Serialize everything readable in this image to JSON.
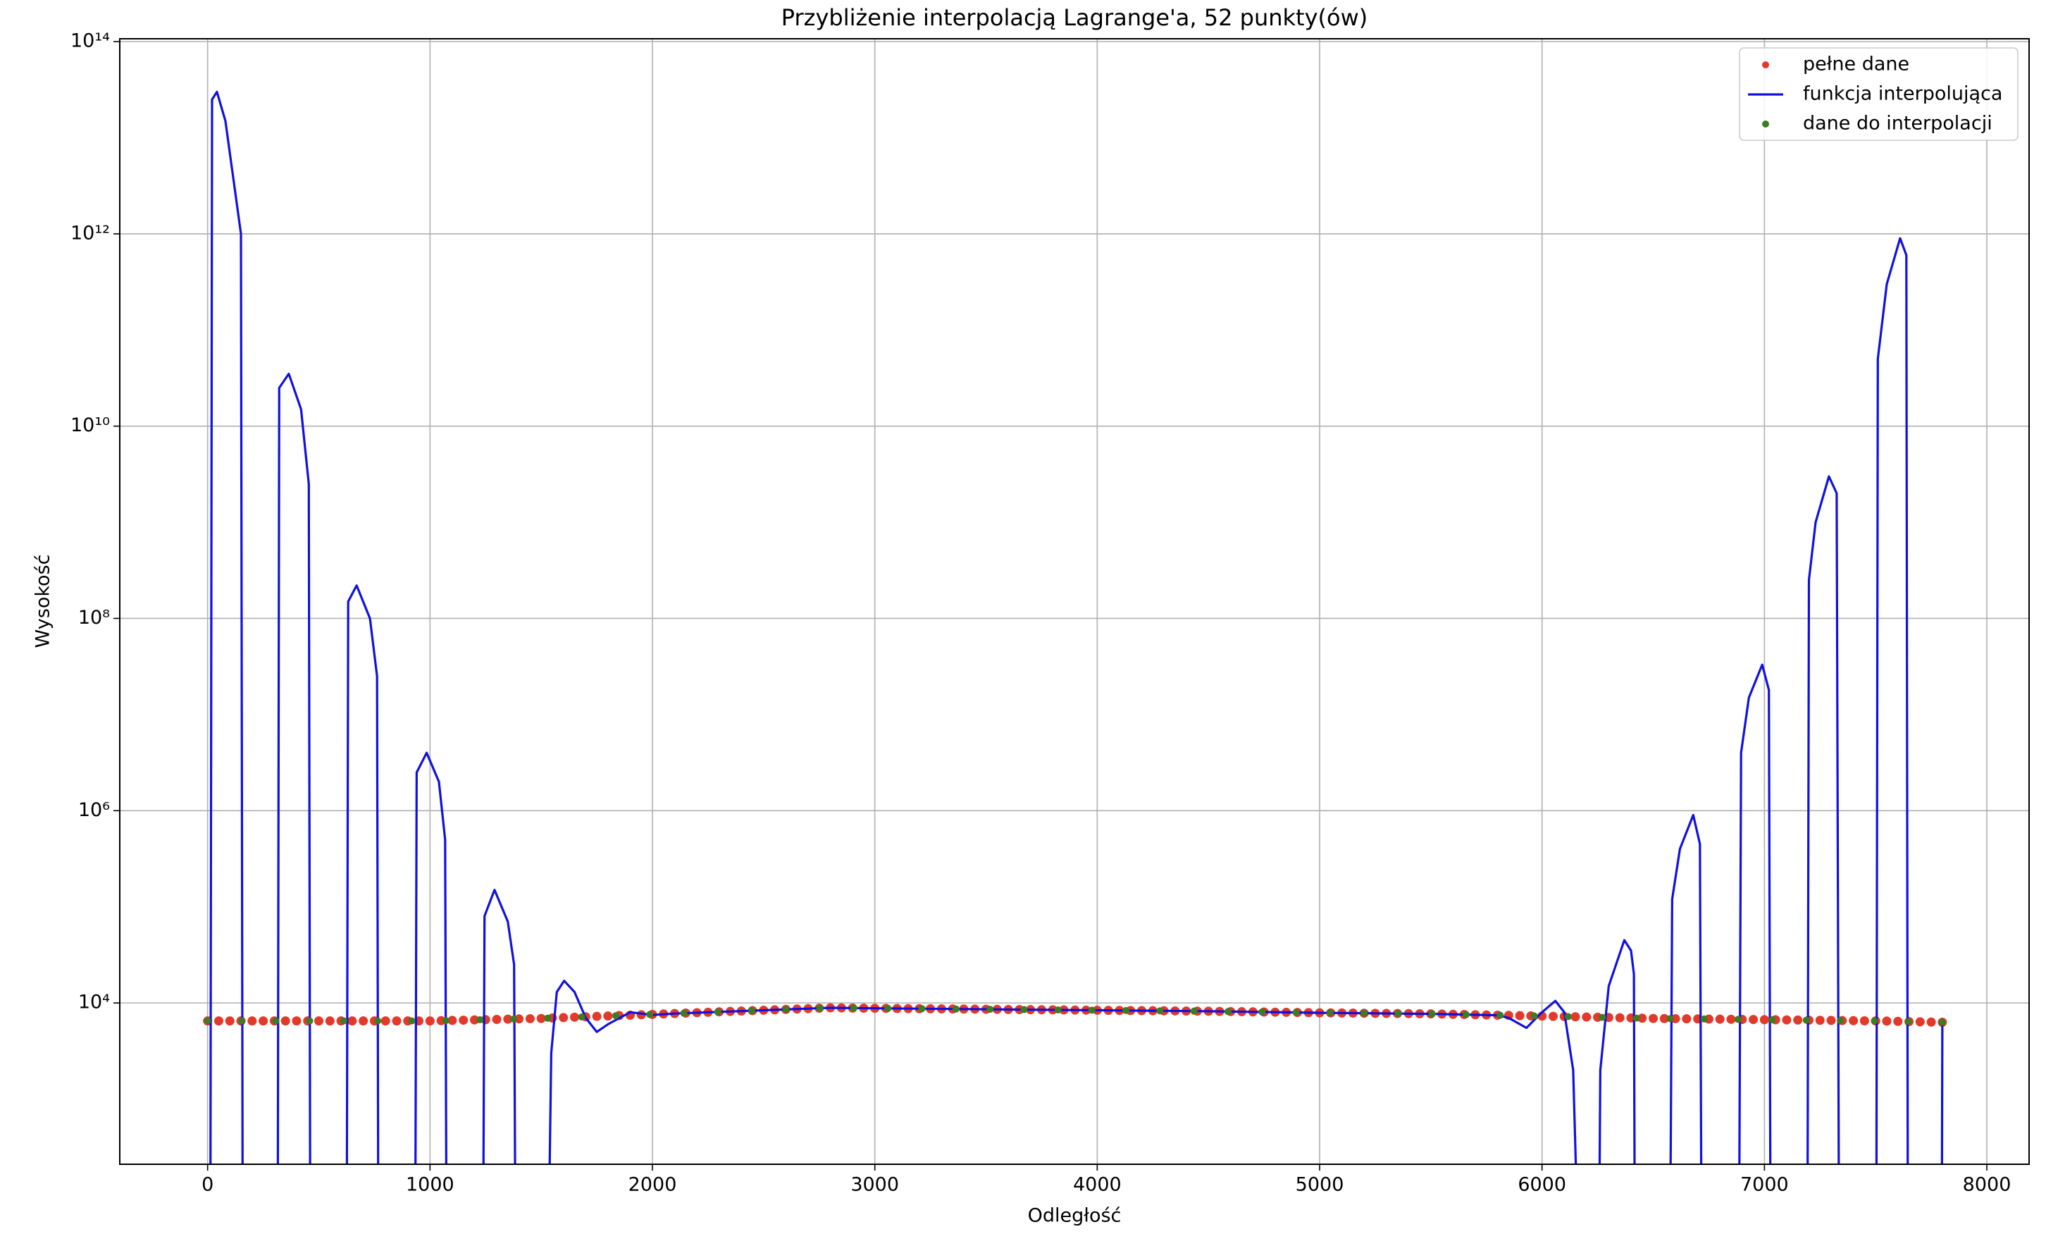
{
  "chart_data": {
    "type": "line",
    "title": "Przybliżenie interpolacją Lagrange'a, 52 punkty(ów)",
    "x_label": "Odległość",
    "y_label": "Wysokość",
    "xlim": [
      -395,
      8190
    ],
    "xticks": [
      0,
      1000,
      2000,
      3000,
      4000,
      5000,
      6000,
      7000,
      8000
    ],
    "ylim": [
      210,
      107000000000000.0
    ],
    "log_y": true,
    "yticks": [
      {
        "value": 10000,
        "label": "10⁴"
      },
      {
        "value": 1000000,
        "label": "10⁶"
      },
      {
        "value": 100000000,
        "label": "10⁸"
      },
      {
        "value": 10000000000,
        "label": "10¹⁰"
      },
      {
        "value": 1000000000000,
        "label": "10¹²"
      },
      {
        "value": 100000000000000,
        "label": "10¹⁴"
      }
    ],
    "grid": true,
    "legend": "upper right",
    "series": [
      {
        "name": "pełne dane",
        "kind": "scatter",
        "color": "#e2392a",
        "x": [
          0,
          50,
          100,
          150,
          200,
          250,
          300,
          350,
          400,
          450,
          500,
          550,
          600,
          650,
          700,
          750,
          800,
          850,
          900,
          950,
          1000,
          1050,
          1100,
          1150,
          1200,
          1250,
          1300,
          1350,
          1400,
          1450,
          1500,
          1550,
          1600,
          1650,
          1700,
          1750,
          1800,
          1850,
          1900,
          1950,
          2000,
          2050,
          2100,
          2150,
          2200,
          2250,
          2300,
          2350,
          2400,
          2450,
          2500,
          2550,
          2600,
          2650,
          2700,
          2750,
          2800,
          2850,
          2900,
          2950,
          3000,
          3050,
          3100,
          3150,
          3200,
          3250,
          3300,
          3350,
          3400,
          3450,
          3500,
          3550,
          3600,
          3650,
          3700,
          3750,
          3800,
          3850,
          3900,
          3950,
          4000,
          4050,
          4100,
          4150,
          4200,
          4250,
          4300,
          4350,
          4400,
          4450,
          4500,
          4550,
          4600,
          4650,
          4700,
          4750,
          4800,
          4850,
          4900,
          4950,
          5000,
          5050,
          5100,
          5150,
          5200,
          5250,
          5300,
          5350,
          5400,
          5450,
          5500,
          5550,
          5600,
          5650,
          5700,
          5750,
          5800,
          5850,
          5900,
          5950,
          6000,
          6050,
          6100,
          6150,
          6200,
          6250,
          6300,
          6350,
          6400,
          6450,
          6500,
          6550,
          6600,
          6650,
          6700,
          6750,
          6800,
          6850,
          6900,
          6950,
          7000,
          7050,
          7100,
          7150,
          7200,
          7250,
          7300,
          7350,
          7400,
          7450,
          7500,
          7550,
          7600,
          7650,
          7700,
          7750,
          7800
        ],
        "values": [
          6500,
          6500,
          6500,
          6500,
          6500,
          6500,
          6500,
          6500,
          6500,
          6500,
          6500,
          6500,
          6500,
          6500,
          6500,
          6500,
          6500,
          6500,
          6500,
          6500,
          6500,
          6540,
          6580,
          6620,
          6660,
          6700,
          6740,
          6780,
          6820,
          6860,
          6900,
          6970,
          7040,
          7110,
          7180,
          7250,
          7320,
          7390,
          7460,
          7530,
          7600,
          7680,
          7760,
          7840,
          7920,
          8000,
          8080,
          8160,
          8240,
          8320,
          8400,
          8480,
          8570,
          8650,
          8730,
          8820,
          8900,
          8880,
          8850,
          8830,
          8800,
          8780,
          8760,
          8740,
          8720,
          8700,
          8680,
          8660,
          8640,
          8620,
          8600,
          8580,
          8560,
          8540,
          8520,
          8500,
          8480,
          8460,
          8440,
          8420,
          8400,
          8380,
          8360,
          8340,
          8320,
          8300,
          8280,
          8260,
          8240,
          8220,
          8200,
          8170,
          8140,
          8110,
          8080,
          8050,
          8020,
          7990,
          7960,
          7930,
          7900,
          7880,
          7860,
          7840,
          7820,
          7800,
          7780,
          7760,
          7740,
          7720,
          7700,
          7660,
          7620,
          7580,
          7540,
          7500,
          7460,
          7420,
          7380,
          7340,
          7300,
          7260,
          7220,
          7180,
          7140,
          7100,
          7060,
          7020,
          6980,
          6940,
          6900,
          6880,
          6860,
          6840,
          6820,
          6800,
          6780,
          6760,
          6740,
          6720,
          6700,
          6680,
          6660,
          6640,
          6620,
          6600,
          6580,
          6560,
          6540,
          6520,
          6500,
          6470,
          6430,
          6400,
          6370,
          6330,
          6300
        ]
      },
      {
        "name": "funkcja interpolująca",
        "kind": "line",
        "color": "#1010e0",
        "x": [
          12,
          20,
          42,
          80,
          150,
          158,
          240,
          315,
          322,
          365,
          420,
          455,
          462,
          545,
          625,
          632,
          670,
          730,
          762,
          768,
          850,
          933,
          940,
          985,
          1040,
          1068,
          1075,
          1160,
          1238,
          1245,
          1290,
          1350,
          1378,
          1385,
          1460,
          1530,
          1545,
          1570,
          1603,
          1650,
          1700,
          1750,
          1800,
          1900,
          2000,
          2100,
          2300,
          2500,
          2800,
          3000,
          3500,
          4000,
          4500,
          5000,
          5500,
          5800,
          5850,
          5930,
          6000,
          6060,
          6100,
          6140,
          6168,
          6210,
          6255,
          6262,
          6300,
          6370,
          6400,
          6413,
          6418,
          6500,
          6575,
          6585,
          6620,
          6680,
          6710,
          6718,
          6800,
          6885,
          6895,
          6930,
          6990,
          7020,
          7028,
          7110,
          7193,
          7200,
          7230,
          7290,
          7325,
          7336,
          7420,
          7503,
          7510,
          7550,
          7610,
          7638,
          7645,
          7720,
          7797,
          7800
        ],
        "values": [
          10,
          25000000000000,
          30000000000000,
          15000000000000,
          1000000000000,
          10,
          null,
          10,
          25000000000,
          35000000000,
          15000000000,
          2500000000,
          10,
          null,
          10,
          150000000,
          220000000,
          100000000,
          25000000,
          10,
          null,
          10,
          2500000,
          4000000,
          2000000,
          500000,
          10,
          null,
          10,
          80000,
          150000,
          70000,
          25000,
          10,
          null,
          10,
          3000,
          13000,
          17000,
          13000,
          7000,
          5000,
          6000,
          8000,
          7500,
          7760,
          8080,
          8400,
          8900,
          8800,
          8600,
          8400,
          8200,
          7900,
          7700,
          7450,
          7000,
          5500,
          8000,
          10500,
          8000,
          2000,
          10,
          null,
          10,
          2000,
          15000,
          45000,
          35000,
          20000,
          10,
          null,
          10,
          120000,
          400000,
          900000,
          450000,
          10,
          null,
          10,
          4000000,
          15000000,
          33000000,
          18000000,
          10,
          null,
          10,
          250000000,
          1000000000,
          3000000000,
          2000000000,
          10,
          null,
          10,
          50000000000,
          300000000000,
          900000000000,
          600000000000,
          10,
          null,
          10,
          6300
        ]
      },
      {
        "name": "dane do interpolacji",
        "kind": "scatter",
        "color": "#3a7d22",
        "x": [
          0,
          153,
          306,
          459,
          612,
          765,
          918,
          1071,
          1224,
          1376,
          1529,
          1682,
          1835,
          1988,
          2141,
          2294,
          2447,
          2600,
          2753,
          2906,
          3059,
          3212,
          3365,
          3518,
          3671,
          3824,
          3976,
          4129,
          4282,
          4435,
          4588,
          4741,
          4894,
          5047,
          5200,
          5353,
          5506,
          5659,
          5812,
          5965,
          6118,
          6271,
          6424,
          6576,
          6729,
          6882,
          7035,
          7188,
          7341,
          7494,
          7647,
          7800
        ],
        "values": [
          6500,
          6500,
          6500,
          6500,
          6500,
          6500,
          6500,
          6560,
          6680,
          6800,
          6940,
          7150,
          7370,
          7580,
          7830,
          8070,
          8320,
          8570,
          8820,
          8850,
          8780,
          8720,
          8650,
          8590,
          8530,
          8470,
          8410,
          8350,
          8290,
          8230,
          8130,
          8060,
          7960,
          7880,
          7800,
          7760,
          7700,
          7570,
          7450,
          7330,
          7210,
          7080,
          6960,
          6870,
          6810,
          6750,
          6690,
          6620,
          6560,
          6500,
          6410,
          6300
        ]
      }
    ]
  }
}
